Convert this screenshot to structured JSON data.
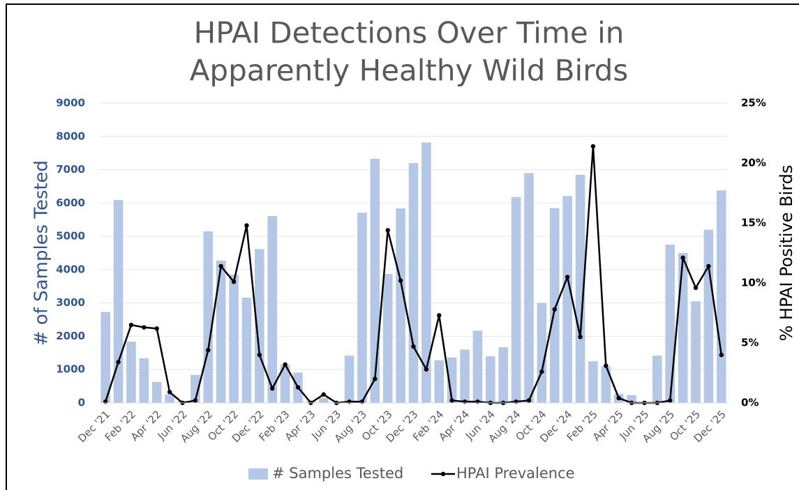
{
  "chart_data": {
    "type": "bar-line",
    "title": [
      "HPAI Detections Over Time in",
      "Apparently Healthy Wild Birds"
    ],
    "y_label": "# of Samples Tested",
    "y2_label": "% HPAI Positive Birds",
    "categories": [
      "Dec '21",
      null,
      "Feb '22",
      null,
      "Apr '22",
      null,
      "Jun '22",
      null,
      "Aug '22",
      null,
      "Oct '22",
      null,
      "Dec '22",
      null,
      "Feb '23",
      null,
      "Apr '23",
      null,
      "Jun '23",
      null,
      "Aug '23",
      null,
      "Oct '23",
      null,
      "Dec '23",
      null,
      "Feb '24",
      null,
      "Apr '24",
      null,
      "Jun '24",
      null,
      "Aug '24",
      null,
      "Oct '24",
      null,
      "Dec '24",
      null,
      "Feb '25",
      null,
      "Apr '25",
      null,
      "Jun '25",
      null,
      "Aug '25",
      null,
      "Oct '25",
      null,
      "Dec '25"
    ],
    "series": [
      {
        "name": "# Samples Tested",
        "type": "bar",
        "color": "#b4c7e7",
        "values": [
          2730,
          6090,
          1840,
          1340,
          630,
          250,
          60,
          840,
          5150,
          4270,
          3850,
          3160,
          4620,
          5610,
          1150,
          910,
          50,
          150,
          0,
          1420,
          5710,
          7330,
          3870,
          5840,
          7200,
          7820,
          1280,
          1360,
          1600,
          2170,
          1400,
          1670,
          6180,
          6900,
          3000,
          5850,
          6210,
          6850,
          1250,
          1100,
          270,
          230,
          0,
          1420,
          4750,
          4500,
          3050,
          5200,
          6380
        ]
      },
      {
        "name": "HPAI Prevalence",
        "type": "line",
        "axis": "y2",
        "color": "#000000",
        "values": [
          0.1,
          3.4,
          6.5,
          6.3,
          6.2,
          0.9,
          0,
          0.2,
          4.4,
          11.4,
          10.1,
          14.8,
          4.0,
          1.2,
          3.2,
          1.3,
          0,
          0.7,
          0,
          0.1,
          0.1,
          2.0,
          14.4,
          10.2,
          4.7,
          2.8,
          7.3,
          0.2,
          0.1,
          0.1,
          0,
          0,
          0.1,
          0.2,
          2.6,
          7.8,
          10.5,
          5.5,
          21.4,
          3.1,
          0.4,
          0,
          0,
          0,
          0.2,
          12.1,
          9.6,
          11.4,
          4.0
        ]
      }
    ],
    "ylim": [
      0,
      9000
    ],
    "yticks": [
      0,
      1000,
      2000,
      3000,
      4000,
      5000,
      6000,
      7000,
      8000,
      9000
    ],
    "y2lim": [
      0,
      25
    ],
    "y2ticks": [
      {
        "value": 0,
        "label": "0%"
      },
      {
        "value": 5,
        "label": "5%"
      },
      {
        "value": 10,
        "label": "10%"
      },
      {
        "value": 15,
        "label": "15%"
      },
      {
        "value": 20,
        "label": "20%"
      },
      {
        "value": 25,
        "label": "25%"
      }
    ],
    "grid": true,
    "legend": "bottom"
  }
}
